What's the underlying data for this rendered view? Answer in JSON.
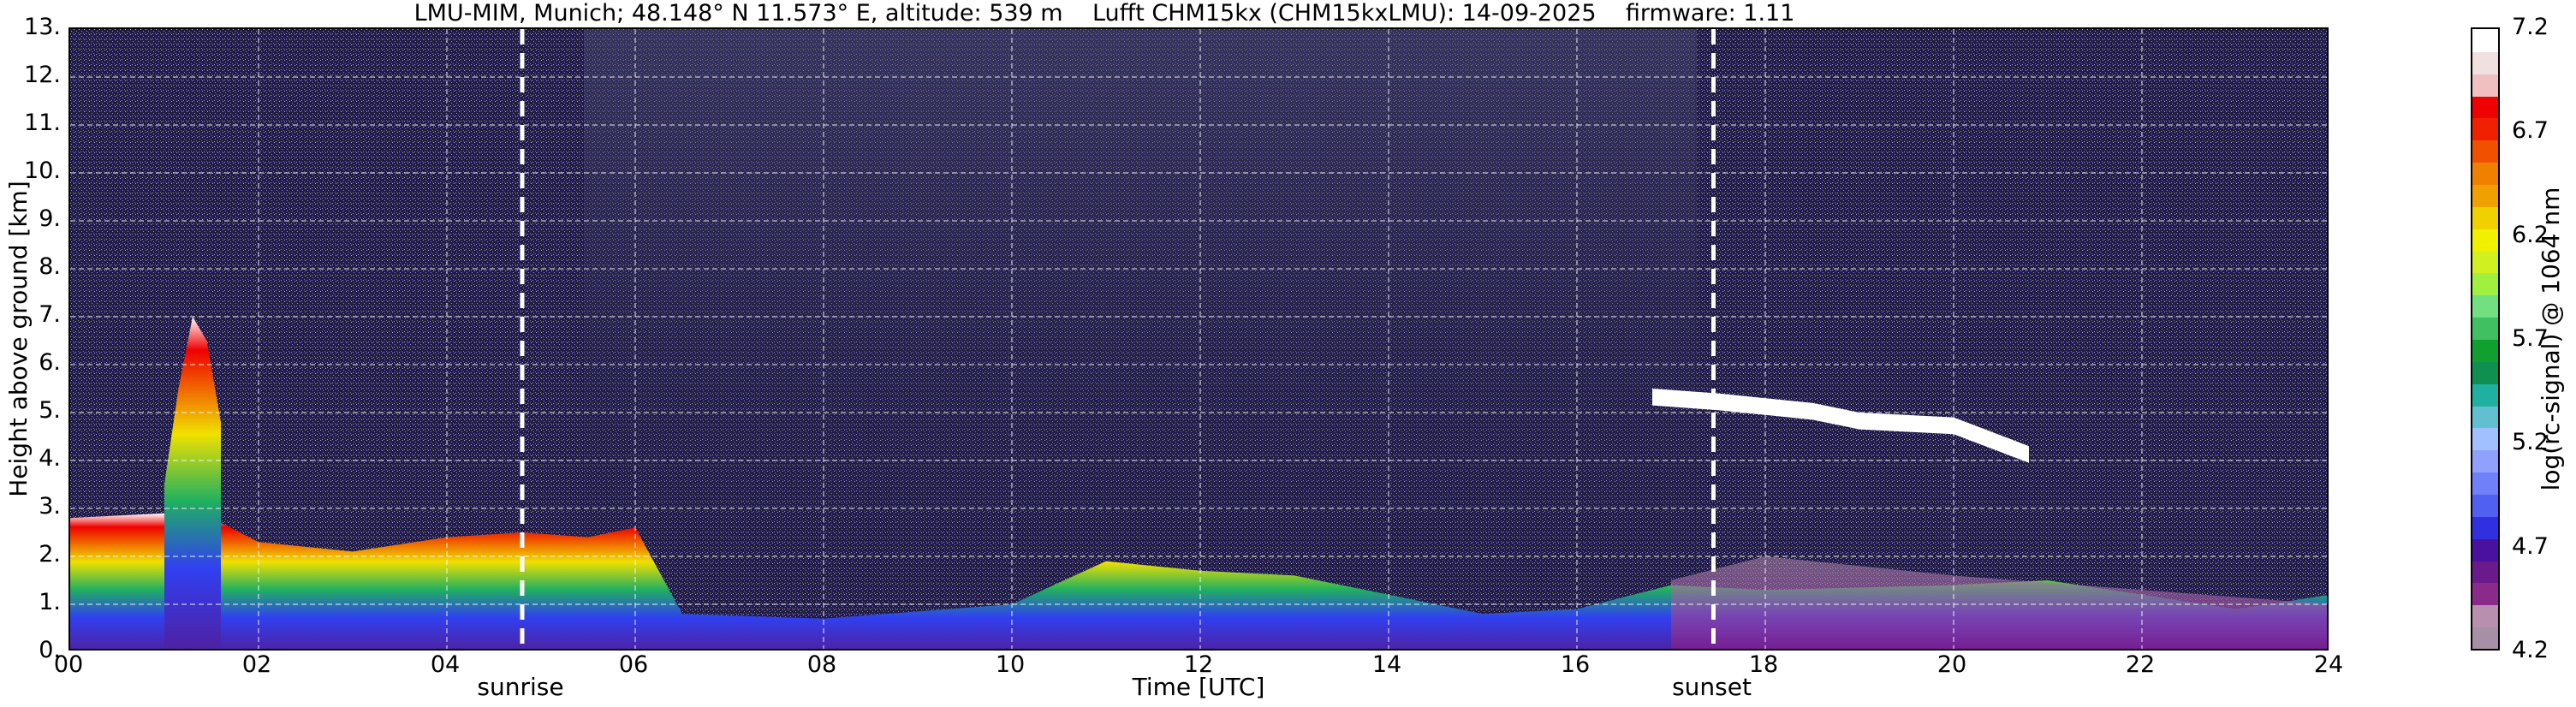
{
  "chart_data": {
    "type": "heatmap",
    "title": "LMU-MIM, Munich; 48.148° N 11.573° E, altitude: 539 m    Lufft CHM15kx (CHM15kxLMU): 14-09-2025    firmware: 1.11",
    "xlabel": "Time [UTC]",
    "ylabel": "Height above ground [km]",
    "xlim": [
      0,
      24
    ],
    "ylim": [
      0,
      13
    ],
    "x_ticks": [
      "00",
      "02",
      "04",
      "06",
      "08",
      "10",
      "12",
      "14",
      "16",
      "18",
      "20",
      "22",
      "24"
    ],
    "y_ticks": [
      "0.",
      "1.",
      "2.",
      "3.",
      "4.",
      "5.",
      "6.",
      "7.",
      "8.",
      "9.",
      "10.",
      "11.",
      "12.",
      "13."
    ],
    "grid": true,
    "annotations": [
      {
        "label": "sunrise",
        "x": 4.8
      },
      {
        "label": "sunset",
        "x": 17.45
      }
    ],
    "colorbar": {
      "label": "log(rc-signal) @ 1064 nm",
      "range": [
        4.2,
        7.2
      ],
      "ticks": [
        "7.2",
        "6.7",
        "6.2",
        "5.7",
        "5.2",
        "4.7",
        "4.2"
      ],
      "colors": [
        "#a690a6",
        "#b98fb0",
        "#8a2a8a",
        "#6a1a8a",
        "#4a10a0",
        "#3030e0",
        "#5060f0",
        "#7080f8",
        "#90a0ff",
        "#a0c0ff",
        "#60c0d0",
        "#20b0a0",
        "#109050",
        "#10a030",
        "#40c060",
        "#70e080",
        "#a0f040",
        "#d0f020",
        "#f0f000",
        "#f0d000",
        "#f0a000",
        "#f08000",
        "#f05000",
        "#f02000",
        "#f00000",
        "#f0c0c0",
        "#f0e0e0",
        "#ffffff"
      ]
    },
    "features": [
      {
        "name": "boundary-layer",
        "x": [
          0,
          1,
          1.5,
          2,
          3,
          4,
          4.8,
          5.5,
          6,
          6.5,
          8,
          10,
          11,
          11.5,
          12,
          13,
          14,
          15,
          16,
          17,
          18,
          20,
          21,
          22,
          23,
          24
        ],
        "top": [
          2.8,
          2.9,
          2.8,
          2.3,
          2.1,
          2.4,
          2.5,
          2.4,
          2.6,
          0.8,
          0.7,
          1.0,
          1.9,
          1.8,
          1.7,
          1.6,
          1.2,
          0.8,
          0.9,
          1.4,
          1.3,
          1.4,
          1.5,
          1.2,
          0.9,
          1.2
        ]
      },
      {
        "name": "plume",
        "x": [
          1.0,
          1.15,
          1.3,
          1.45,
          1.6
        ],
        "top": [
          3.5,
          5.5,
          7.0,
          6.5,
          4.8
        ]
      },
      {
        "name": "cloud-layer",
        "x": [
          16.8,
          17.5,
          18.0,
          18.5,
          19.0,
          20.0,
          20.8
        ],
        "top": [
          5.5,
          5.4,
          5.3,
          5.2,
          5.0,
          4.9,
          4.3
        ]
      },
      {
        "name": "aerosol-layer",
        "x": [
          17,
          18,
          20,
          22,
          24
        ],
        "top": [
          1.5,
          2.0,
          1.6,
          1.3,
          1.0
        ]
      }
    ]
  }
}
